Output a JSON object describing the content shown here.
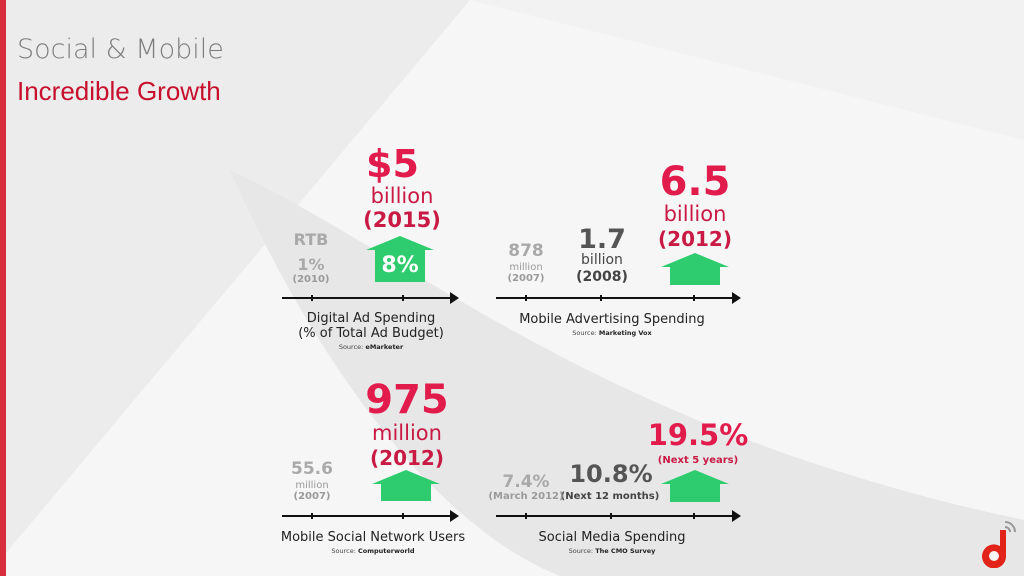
{
  "slide": {
    "title": "Social & Mobile",
    "subtitle": "Incredible Growth",
    "accent_color": "#d72d3c",
    "highlight_color": "#e21b4d",
    "arrow_color": "#2ecc6e"
  },
  "panels": {
    "digital_ad": {
      "big_value": "$5",
      "big_unit": "billion",
      "big_year": "(2015)",
      "arrow_label": "8%",
      "rtb_label": "RTB",
      "old_value": "1%",
      "old_year": "(2010)",
      "caption_line1": "Digital Ad Spending",
      "caption_line2": "(% of Total Ad Budget)",
      "source_prefix": "Source:",
      "source_name": "eMarketer"
    },
    "mobile_ad": {
      "old_value": "878",
      "old_unit": "million",
      "old_year": "(2007)",
      "mid_value": "1.7",
      "mid_unit": "billion",
      "mid_year": "(2008)",
      "big_value": "6.5",
      "big_unit": "billion",
      "big_year": "(2012)",
      "caption": "Mobile Advertising Spending",
      "source_prefix": "Source:",
      "source_name": "Marketing Vox"
    },
    "mobile_social": {
      "big_value": "975",
      "big_unit": "million",
      "big_year": "(2012)",
      "old_value": "55.6",
      "old_unit": "million",
      "old_year": "(2007)",
      "caption": "Mobile Social Network Users",
      "source_prefix": "Source:",
      "source_name": "Computerworld"
    },
    "social_media": {
      "old_value": "7.4%",
      "old_year": "(March 2012)",
      "mid_value": "10.8%",
      "mid_period": "(Next 12 months)",
      "big_value": "19.5%",
      "big_period": "(Next 5 years)",
      "caption": "Social Media Spending",
      "source_prefix": "Source:",
      "source_name": "The CMO Survey"
    }
  },
  "logo_icon": "wifi-d-logo-icon"
}
